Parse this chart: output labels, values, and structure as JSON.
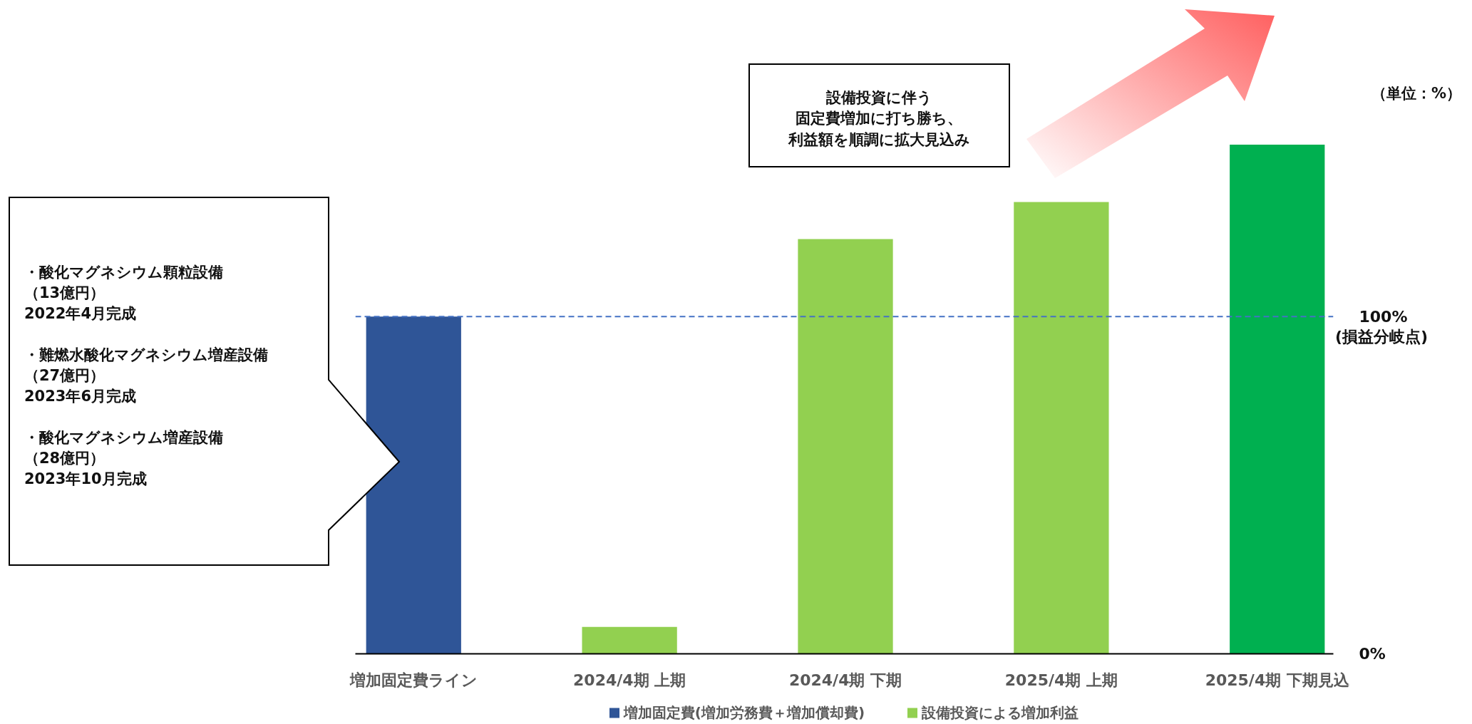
{
  "chart_data": {
    "type": "bar",
    "categories": [
      "増加固定費ライン",
      "2024/4期 上期",
      "2024/4期 下期",
      "2025/4期 上期",
      "2025/4期 下期見込"
    ],
    "series": [
      {
        "name": "増加固定費(増加労務費＋増加償却費)",
        "color": "#2f5597",
        "values": [
          100,
          null,
          null,
          null,
          null
        ]
      },
      {
        "name": "設備投資による増加利益",
        "color": "#92d050",
        "colors": [
          null,
          "#92d050",
          "#92d050",
          "#92d050",
          "#00b050"
        ],
        "values": [
          null,
          8,
          123,
          134,
          151
        ]
      }
    ],
    "ylim": [
      0,
      175
    ],
    "yticks": [
      {
        "value": 0,
        "label": "0%"
      },
      {
        "value": 100,
        "label": "100%"
      }
    ],
    "ref_lines": [
      {
        "axis": "y",
        "value": 100,
        "label": "(損益分岐点)",
        "color": "#4472c4",
        "line_style": "dashed"
      }
    ],
    "annotations": [
      "（単位：%）",
      "設備投資に伴う",
      "固定費増加に打ち勝ち、",
      "利益額を順調に拡大見込み",
      "・酸化マグネシウム顆粒設備",
      "（13億円）",
      "2022年4月完成",
      "・難燃水酸化マグネシウム増産設備",
      "（27億円）",
      "2023年6月完成",
      "・酸化マグネシウム増産設備",
      "（28億円）",
      "2023年10月完成"
    ],
    "grid": false,
    "legend": "bottom"
  }
}
